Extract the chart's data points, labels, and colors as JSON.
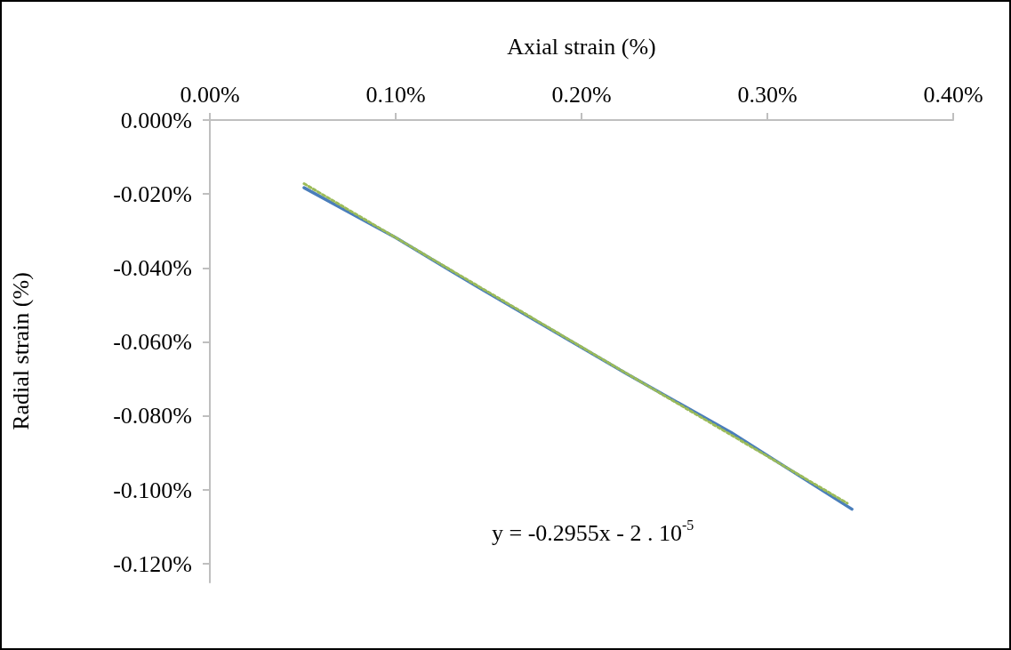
{
  "chart_data": {
    "type": "line",
    "xlabel": "Axial strain (%)",
    "ylabel": "Radial strain (%)",
    "xlim": [
      0,
      0.4
    ],
    "xticks": [
      {
        "value": 0,
        "label": "0.00%"
      },
      {
        "value": 0.1,
        "label": "0.10%"
      },
      {
        "value": 0.2,
        "label": "0.20%"
      },
      {
        "value": 0.3,
        "label": "0.30%"
      },
      {
        "value": 0.4,
        "label": "0.40%"
      }
    ],
    "ylim": [
      -0.125,
      0
    ],
    "yticks": [
      {
        "value": 0,
        "label": "0.000%"
      },
      {
        "value": -0.02,
        "label": "-0.020%"
      },
      {
        "value": -0.04,
        "label": "-0.040%"
      },
      {
        "value": -0.06,
        "label": "-0.060%"
      },
      {
        "value": -0.08,
        "label": "-0.080%"
      },
      {
        "value": -0.1,
        "label": "-0.100%"
      },
      {
        "value": -0.12,
        "label": "-0.120%"
      }
    ],
    "marker": "none",
    "series": [
      {
        "color": "#4a7ebb",
        "line_style": "solid",
        "x": [
          0.0507,
          0.1,
          0.144,
          0.2246,
          0.2806,
          0.3455
        ],
        "values": [
          -0.0183,
          -0.0318,
          -0.0451,
          -0.0687,
          -0.0845,
          -0.1052
        ]
      },
      {
        "color": "#9bbb59",
        "line_style": "dotted",
        "x": [
          0.0507,
          0.343
        ],
        "values": [
          -0.0172,
          -0.1036
        ]
      }
    ],
    "annotations": [
      "y = -0.2955x - 2 . 10$^{-5}$"
    ]
  }
}
